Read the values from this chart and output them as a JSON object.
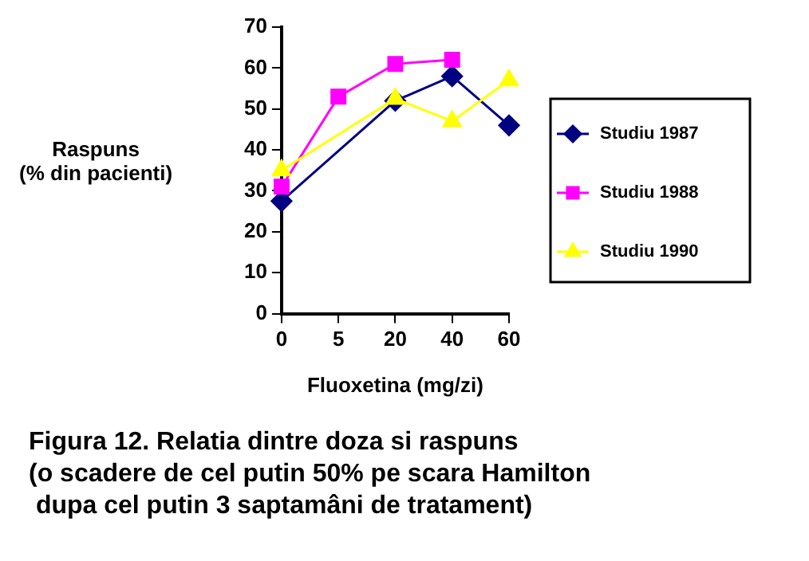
{
  "chart_data": {
    "type": "line",
    "title": "Figura 12. Relatia dintre doza si raspuns\n(o scadere de cel putin 50% pe scara Hamilton\n dupa cel putin 3 saptamâni de tratament)",
    "xlabel": "Fluoxetina (mg/zi)",
    "ylabel": "Raspuns\n(% din pacienti)",
    "categories": [
      "0",
      "5",
      "20",
      "40",
      "60"
    ],
    "ylim": [
      0,
      70
    ],
    "yticks": [
      0,
      10,
      20,
      30,
      40,
      50,
      60,
      70
    ],
    "grid": false,
    "legend": "right",
    "line_style": "solid",
    "series": [
      {
        "name": "Studiu 1987",
        "color": "#000080",
        "marker": "diamond",
        "values": [
          27.5,
          null,
          52,
          58,
          46
        ]
      },
      {
        "name": "Studiu 1988",
        "color": "#ff00ff",
        "marker": "square",
        "values": [
          31,
          53,
          61,
          62,
          null
        ]
      },
      {
        "name": "Studiu 1990",
        "color": "#ffff00",
        "marker": "triangle",
        "values": [
          35,
          null,
          52.5,
          47,
          57
        ]
      }
    ]
  }
}
